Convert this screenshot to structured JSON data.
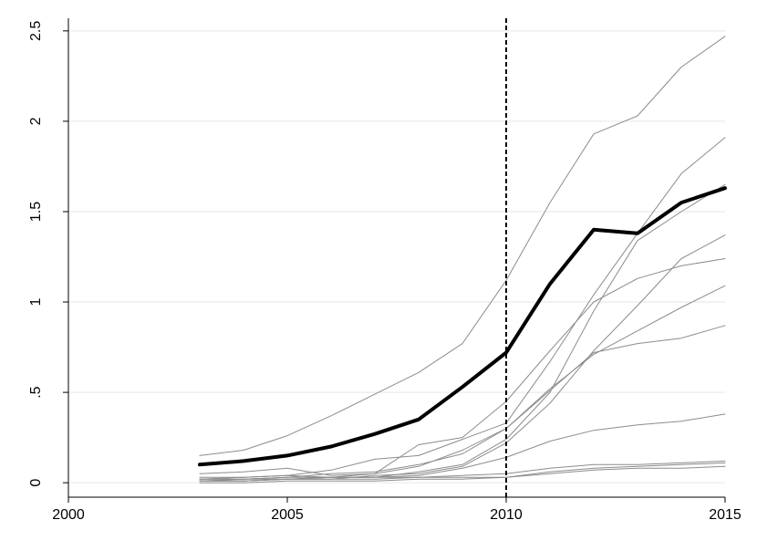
{
  "chart_data": {
    "type": "line",
    "title": "",
    "xlabel": "",
    "ylabel": "",
    "xlim": [
      2000,
      2015
    ],
    "ylim": [
      0,
      2.5
    ],
    "x_ticks": [
      {
        "value": 2000,
        "label": "2000"
      },
      {
        "value": 2005,
        "label": "2005"
      },
      {
        "value": 2010,
        "label": "2010"
      },
      {
        "value": 2015,
        "label": "2015"
      }
    ],
    "y_ticks": [
      {
        "value": 0,
        "label": "0"
      },
      {
        "value": 0.5,
        "label": ".5"
      },
      {
        "value": 1,
        "label": "1"
      },
      {
        "value": 1.5,
        "label": "1.5"
      },
      {
        "value": 2,
        "label": "2"
      },
      {
        "value": 2.5,
        "label": "2.5"
      }
    ],
    "grid": true,
    "reference_line": {
      "x": 2010,
      "style": "dashed",
      "color": "#000000"
    },
    "x": [
      2003,
      2004,
      2005,
      2006,
      2007,
      2008,
      2009,
      2010,
      2011,
      2012,
      2013,
      2014,
      2015
    ],
    "series": [
      {
        "values": [
          0.15,
          0.18,
          0.26,
          0.37,
          0.49,
          0.61,
          0.77,
          1.12,
          1.55,
          1.93,
          2.03,
          2.3,
          2.47
        ],
        "color": "#8c8c8c",
        "emphasis": false
      },
      {
        "values": [
          0.05,
          0.06,
          0.08,
          0.04,
          0.05,
          0.21,
          0.25,
          0.45,
          0.73,
          1.0,
          1.13,
          1.2,
          1.24
        ],
        "color": "#8c8c8c",
        "emphasis": false
      },
      {
        "values": [
          0.02,
          0.03,
          0.04,
          0.07,
          0.13,
          0.15,
          0.24,
          0.33,
          0.67,
          1.04,
          1.38,
          1.71,
          1.91
        ],
        "color": "#8c8c8c",
        "emphasis": false
      },
      {
        "values": [
          0.01,
          0.02,
          0.03,
          0.03,
          0.03,
          0.06,
          0.1,
          0.24,
          0.5,
          0.95,
          1.34,
          1.5,
          1.65
        ],
        "color": "#8c8c8c",
        "emphasis": false
      },
      {
        "values": [
          0.01,
          0.01,
          0.02,
          0.02,
          0.04,
          0.05,
          0.09,
          0.22,
          0.44,
          0.73,
          0.98,
          1.24,
          1.37
        ],
        "color": "#8c8c8c",
        "emphasis": false
      },
      {
        "values": [
          0.01,
          0.01,
          0.02,
          0.03,
          0.05,
          0.09,
          0.18,
          0.3,
          0.52,
          0.71,
          0.84,
          0.97,
          1.09
        ],
        "color": "#8c8c8c",
        "emphasis": false
      },
      {
        "values": [
          0.02,
          0.02,
          0.03,
          0.05,
          0.06,
          0.1,
          0.16,
          0.3,
          0.51,
          0.72,
          0.77,
          0.8,
          0.87
        ],
        "color": "#8c8c8c",
        "emphasis": false
      },
      {
        "values": [
          0.01,
          0.01,
          0.02,
          0.03,
          0.03,
          0.04,
          0.08,
          0.14,
          0.23,
          0.29,
          0.32,
          0.34,
          0.38
        ],
        "color": "#8c8c8c",
        "emphasis": false
      },
      {
        "values": [
          0.02,
          0.02,
          0.02,
          0.02,
          0.02,
          0.03,
          0.04,
          0.05,
          0.08,
          0.1,
          0.1,
          0.11,
          0.12
        ],
        "color": "#8c8c8c",
        "emphasis": false
      },
      {
        "values": [
          0.03,
          0.03,
          0.04,
          0.03,
          0.03,
          0.03,
          0.03,
          0.03,
          0.06,
          0.08,
          0.09,
          0.1,
          0.11
        ],
        "color": "#8c8c8c",
        "emphasis": false
      },
      {
        "values": [
          0.0,
          0.0,
          0.01,
          0.01,
          0.01,
          0.02,
          0.02,
          0.03,
          0.05,
          0.07,
          0.08,
          0.08,
          0.09
        ],
        "color": "#8c8c8c",
        "emphasis": false
      },
      {
        "values": [
          0.1,
          0.12,
          0.15,
          0.2,
          0.27,
          0.35,
          0.53,
          0.72,
          1.1,
          1.4,
          1.38,
          1.55,
          1.63
        ],
        "color": "#000000",
        "emphasis": true
      }
    ]
  }
}
